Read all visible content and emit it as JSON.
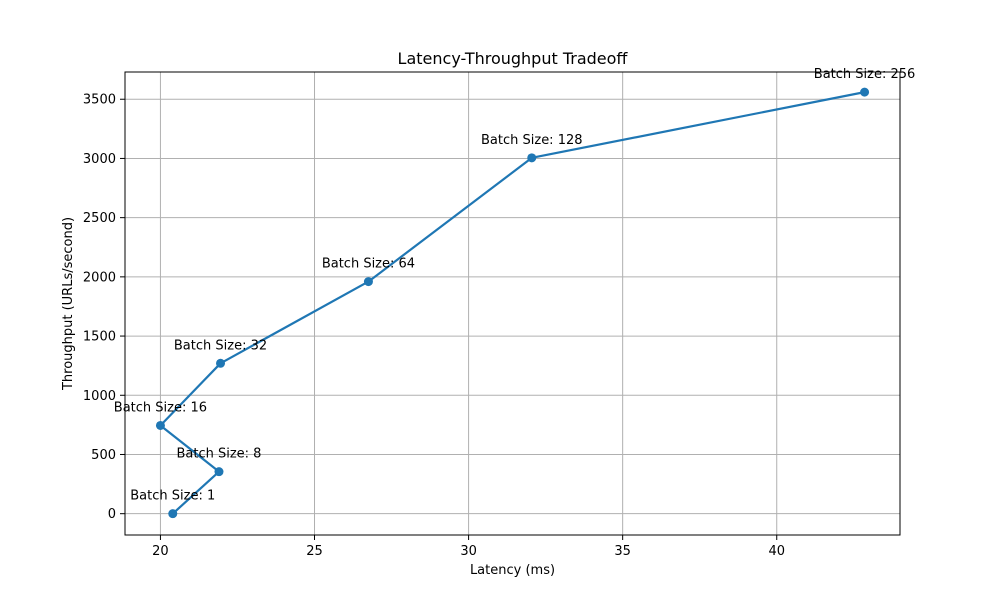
{
  "chart_data": {
    "type": "line",
    "title": "Latency-Throughput Tradeoff",
    "xlabel": "Latency (ms)",
    "ylabel": "Throughput (URLs/second)",
    "xlim": [
      18.85,
      44.0
    ],
    "ylim": [
      -180,
      3730
    ],
    "xticks": [
      20,
      25,
      30,
      35,
      40
    ],
    "yticks": [
      0,
      500,
      1000,
      1500,
      2000,
      2500,
      3000,
      3500
    ],
    "grid": true,
    "legend": "none",
    "colors": {
      "line": "#1f77b4",
      "grid": "#b0b0b0",
      "axis": "#000000"
    },
    "series": [
      {
        "points": [
          {
            "x": 20.4,
            "y": 0,
            "label": "Batch Size: 1"
          },
          {
            "x": 21.9,
            "y": 355,
            "label": "Batch Size: 8"
          },
          {
            "x": 20.0,
            "y": 745,
            "label": "Batch Size: 16"
          },
          {
            "x": 21.95,
            "y": 1270,
            "label": "Batch Size: 32"
          },
          {
            "x": 26.75,
            "y": 1960,
            "label": "Batch Size: 64"
          },
          {
            "x": 32.05,
            "y": 3005,
            "label": "Batch Size: 128"
          },
          {
            "x": 42.85,
            "y": 3560,
            "label": "Batch Size: 256"
          }
        ]
      }
    ]
  }
}
